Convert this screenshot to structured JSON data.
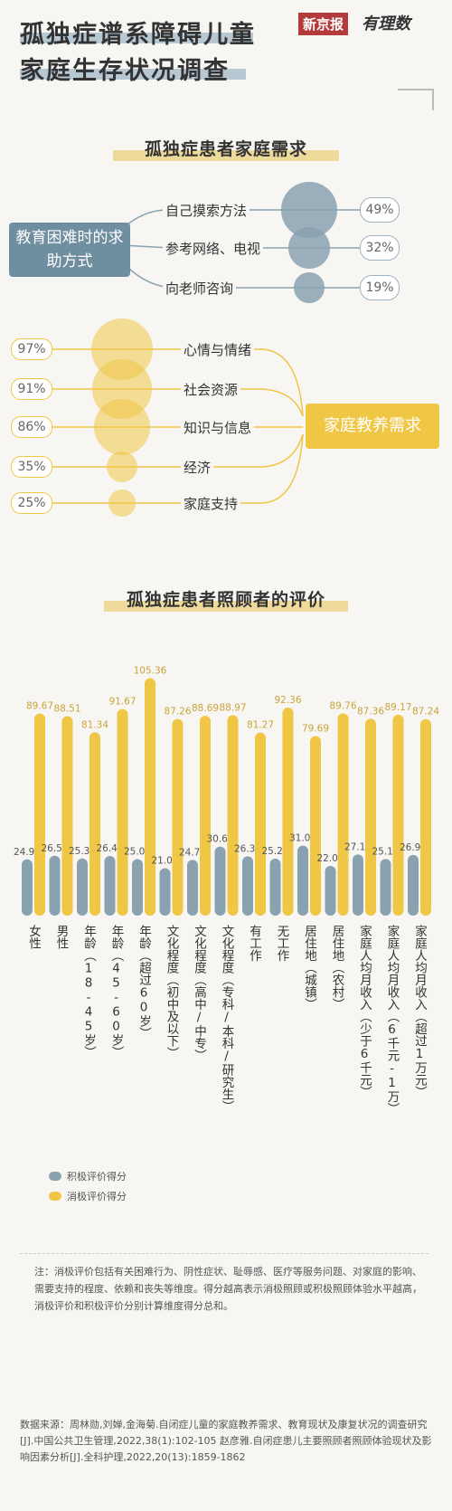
{
  "header": {
    "title_line1": "孤独症谱系障碍儿童",
    "title_line2": "家庭生存状况调查",
    "logo_red": "新京报",
    "logo_right": "有理数"
  },
  "section1": {
    "title": "孤独症患者家庭需求",
    "help_box": "教育困难时的求助方式",
    "help_items": [
      {
        "label": "自己摸索方法",
        "pct": "49%",
        "value": 49
      },
      {
        "label": "参考网络、电视",
        "pct": "32%",
        "value": 32
      },
      {
        "label": "向老师咨询",
        "pct": "19%",
        "value": 19
      }
    ],
    "needs_box": "家庭教养需求",
    "needs_items": [
      {
        "label": "心情与情绪",
        "pct": "97%",
        "value": 97
      },
      {
        "label": "社会资源",
        "pct": "91%",
        "value": 91
      },
      {
        "label": "知识与信息",
        "pct": "86%",
        "value": 86
      },
      {
        "label": "经济",
        "pct": "35%",
        "value": 35
      },
      {
        "label": "家庭支持",
        "pct": "25%",
        "value": 25
      }
    ]
  },
  "section2": {
    "title": "孤独症患者照顾者的评价"
  },
  "colors": {
    "positive": "#8aa2b0",
    "negative": "#f0c645",
    "accent_red": "#b43b3b"
  },
  "chart_data": {
    "type": "bar",
    "categories": [
      "女性",
      "男性",
      "年龄(18-45岁)",
      "年龄(45-60岁)",
      "年龄(超过60岁)",
      "文化程度(初中及以下)",
      "文化程度(高中/中专)",
      "文化程度(专科/本科/研究生)",
      "有工作",
      "无工作",
      "居住地(城镇)",
      "居住地(农村)",
      "家庭人均月收入(少于6千元)",
      "家庭人均月收入(6千元-1万)",
      "家庭人均月收入(超过1万元)"
    ],
    "category_labels": [
      "女性",
      "男性",
      "年龄（18-45岁）",
      "年龄（45-60岁）",
      "年龄（超过60岁）",
      "文化程度（初中及以下）",
      "文化程度（高中/中专）",
      "文化程度（专科/本科/研究生）",
      "有工作",
      "无工作",
      "居住地（城镇）",
      "居住地（农村）",
      "家庭人均月收入（少于6千元）",
      "家庭人均月收入（6千元-1万）",
      "家庭人均月收入（超过1万元）"
    ],
    "series": [
      {
        "name": "积极评价得分",
        "values": [
          24.97,
          26.59,
          25.37,
          26.49,
          25.08,
          21.06,
          24.75,
          30.66,
          26.35,
          25.29,
          31.06,
          22.06,
          27.13,
          25.16,
          26.94
        ]
      },
      {
        "name": "消极评价得分",
        "values": [
          89.67,
          88.51,
          81.34,
          91.67,
          105.36,
          87.26,
          88.69,
          88.97,
          81.27,
          92.36,
          79.69,
          89.76,
          87.36,
          89.17,
          87.24
        ]
      }
    ],
    "ylim": [
      0,
      110
    ]
  },
  "footer": {
    "note": "注：消极评价包括有关困难行为、阴性症状、耻辱感、医疗等服务问题、对家庭的影响、需要支持的程度、依赖和丧失等维度。得分越高表示消极照顾或积极照顾体验水平越高，消极评价和积极评价分别计算维度得分总和。",
    "source": "数据来源：周林勋,刘婵,金海菊.自闭症儿童的家庭教养需求、教育现状及康复状况的调查研究[J].中国公共卫生管理,2022,38(1):102-105 赵彦雅.自闭症患儿主要照顾者照顾体验现状及影响因素分析[J].全科护理,2022,20(13):1859-1862"
  }
}
